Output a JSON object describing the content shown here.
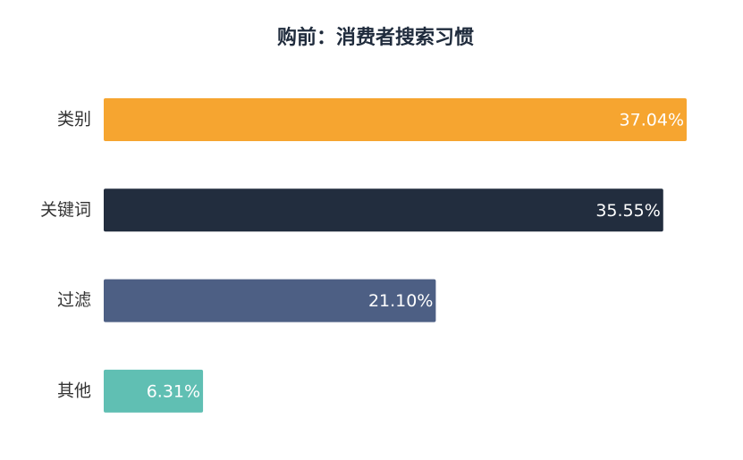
{
  "chart_data": {
    "type": "bar",
    "orientation": "horizontal",
    "title": "购前：消费者搜索习惯",
    "categories": [
      "类别",
      "关键词",
      "过滤",
      "其他"
    ],
    "values": [
      37.04,
      35.55,
      21.1,
      6.31
    ],
    "value_labels": [
      "37.04%",
      "35.55%",
      "21.10%",
      "6.31%"
    ],
    "colors": [
      "#f6a530",
      "#222d3e",
      "#4d5f84",
      "#60bfb3"
    ]
  }
}
